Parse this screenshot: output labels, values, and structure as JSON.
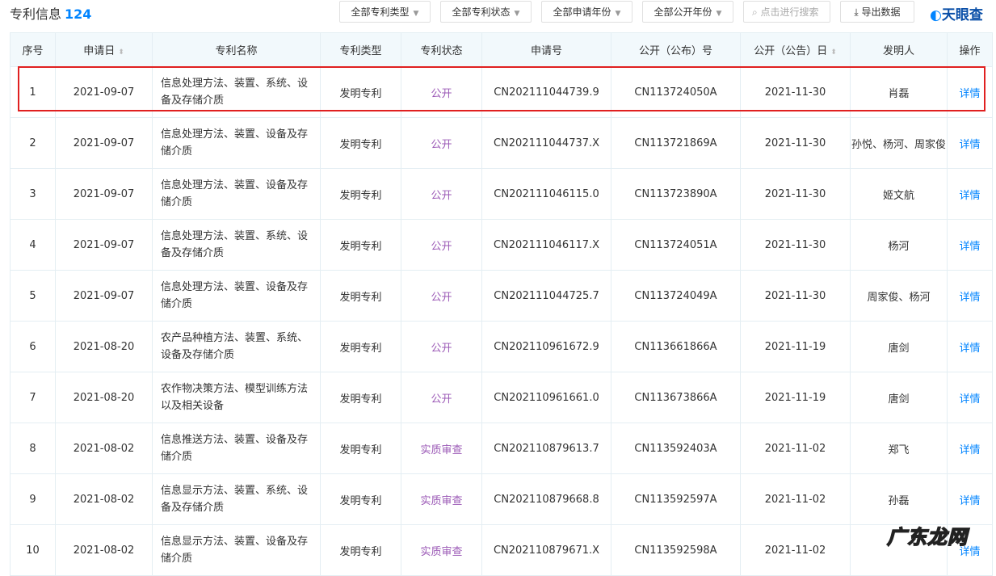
{
  "header": {
    "title": "专利信息",
    "count": "124",
    "filters": [
      "全部专利类型",
      "全部专利状态",
      "全部申请年份",
      "全部公开年份"
    ],
    "search_placeholder": "点击进行搜索",
    "export_label": "导出数据",
    "logo": "天眼查"
  },
  "columns": [
    "序号",
    "申请日",
    "专利名称",
    "专利类型",
    "专利状态",
    "申请号",
    "公开（公布）号",
    "公开（公告）日",
    "发明人",
    "操作"
  ],
  "rows": [
    {
      "no": "1",
      "date": "2021-09-07",
      "name": "信息处理方法、装置、系统、设备及存储介质",
      "type": "发明专利",
      "status": "公开",
      "app_no": "CN202111044739.9",
      "pub_no": "CN113724050A",
      "pub_date": "2021-11-30",
      "inventor": "肖磊",
      "op": "详情"
    },
    {
      "no": "2",
      "date": "2021-09-07",
      "name": "信息处理方法、装置、设备及存储介质",
      "type": "发明专利",
      "status": "公开",
      "app_no": "CN202111044737.X",
      "pub_no": "CN113721869A",
      "pub_date": "2021-11-30",
      "inventor": "孙悦、杨河、周家俊",
      "op": "详情"
    },
    {
      "no": "3",
      "date": "2021-09-07",
      "name": "信息处理方法、装置、设备及存储介质",
      "type": "发明专利",
      "status": "公开",
      "app_no": "CN202111046115.0",
      "pub_no": "CN113723890A",
      "pub_date": "2021-11-30",
      "inventor": "姬文航",
      "op": "详情"
    },
    {
      "no": "4",
      "date": "2021-09-07",
      "name": "信息处理方法、装置、系统、设备及存储介质",
      "type": "发明专利",
      "status": "公开",
      "app_no": "CN202111046117.X",
      "pub_no": "CN113724051A",
      "pub_date": "2021-11-30",
      "inventor": "杨河",
      "op": "详情"
    },
    {
      "no": "5",
      "date": "2021-09-07",
      "name": "信息处理方法、装置、设备及存储介质",
      "type": "发明专利",
      "status": "公开",
      "app_no": "CN202111044725.7",
      "pub_no": "CN113724049A",
      "pub_date": "2021-11-30",
      "inventor": "周家俊、杨河",
      "op": "详情"
    },
    {
      "no": "6",
      "date": "2021-08-20",
      "name": "农产品种植方法、装置、系统、设备及存储介质",
      "type": "发明专利",
      "status": "公开",
      "app_no": "CN202110961672.9",
      "pub_no": "CN113661866A",
      "pub_date": "2021-11-19",
      "inventor": "唐剑",
      "op": "详情"
    },
    {
      "no": "7",
      "date": "2021-08-20",
      "name": "农作物决策方法、模型训练方法以及相关设备",
      "type": "发明专利",
      "status": "公开",
      "app_no": "CN202110961661.0",
      "pub_no": "CN113673866A",
      "pub_date": "2021-11-19",
      "inventor": "唐剑",
      "op": "详情"
    },
    {
      "no": "8",
      "date": "2021-08-02",
      "name": "信息推送方法、装置、设备及存储介质",
      "type": "发明专利",
      "status": "实质审查",
      "app_no": "CN202110879613.7",
      "pub_no": "CN113592403A",
      "pub_date": "2021-11-02",
      "inventor": "郑飞",
      "op": "详情"
    },
    {
      "no": "9",
      "date": "2021-08-02",
      "name": "信息显示方法、装置、系统、设备及存储介质",
      "type": "发明专利",
      "status": "实质审查",
      "app_no": "CN202110879668.8",
      "pub_no": "CN113592597A",
      "pub_date": "2021-11-02",
      "inventor": "孙磊",
      "op": "详情"
    },
    {
      "no": "10",
      "date": "2021-08-02",
      "name": "信息显示方法、装置、设备及存储介质",
      "type": "发明专利",
      "status": "实质审查",
      "app_no": "CN202110879671.X",
      "pub_no": "CN113592598A",
      "pub_date": "2021-11-02",
      "inventor": "",
      "op": "详情"
    }
  ],
  "watermark": "广东龙网"
}
